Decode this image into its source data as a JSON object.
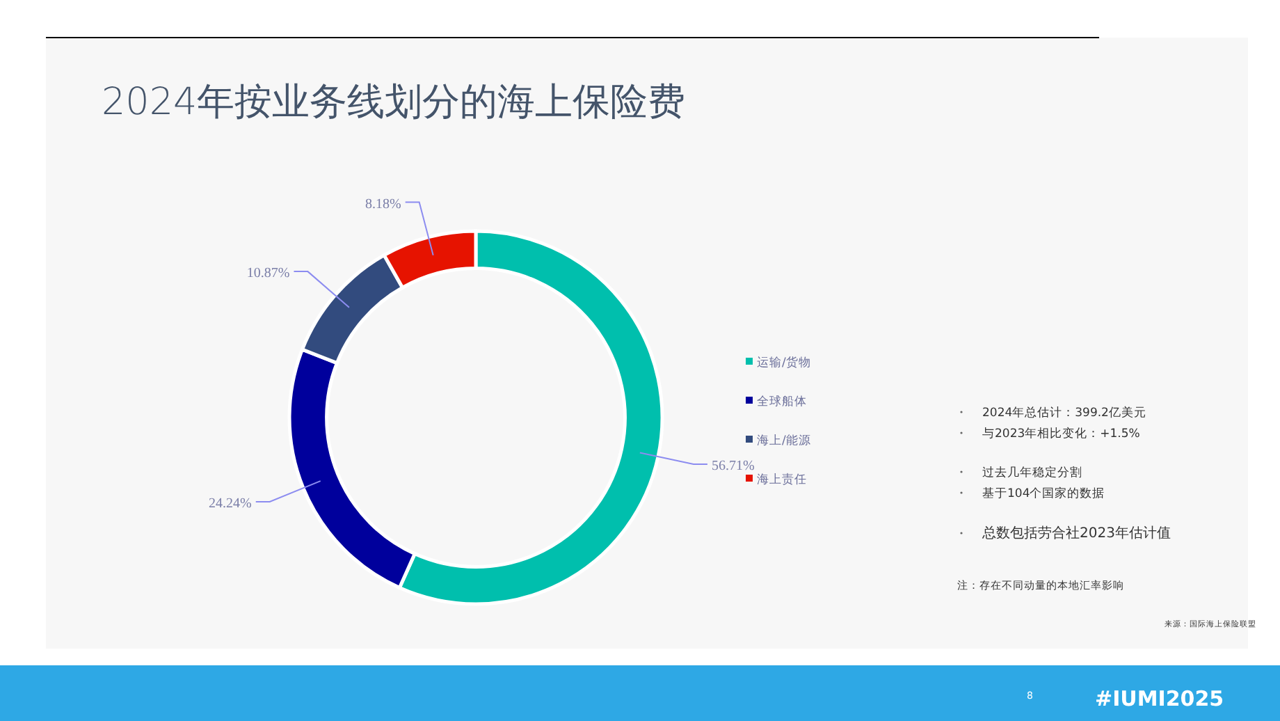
{
  "chart_data": {
    "type": "donut",
    "title": "2024年按业务线划分的海上保险费",
    "categories": [
      "运输/货物",
      "全球船体",
      "海上/能源",
      "海上责任"
    ],
    "values": [
      56.71,
      24.24,
      10.87,
      8.18
    ],
    "value_labels": [
      "56.71%",
      "24.24%",
      "10.87%",
      "8.18%"
    ],
    "colors": [
      "#00bfad",
      "#00009c",
      "#324b7e",
      "#e61300"
    ],
    "legend": "right",
    "annotations": [
      "2024年总估计：399.2亿美元",
      "与2023年相比变化：+1.5%",
      "过去几年稳定分割",
      "基于104个国家的数据",
      "总数包括劳合社2023年估计值",
      "注：存在不同动量的本地汇率影响",
      "来源：国际海上保险联盟",
      "8",
      "#IUMI2025"
    ]
  }
}
